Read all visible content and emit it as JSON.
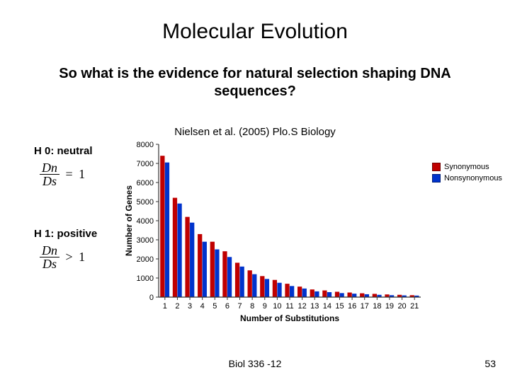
{
  "title": "Molecular Evolution",
  "subtitle": "So what is the evidence for natural selection shaping DNA sequences?",
  "citation": "Nielsen et al. (2005) Plo.S Biology",
  "hypotheses": {
    "h0_label": "H 0: neutral",
    "h1_label": "H 1: positive",
    "frac_num": "Dn",
    "frac_den": "Ds",
    "eq_rel": "=",
    "eq_val": "1",
    "gt_rel": ">",
    "gt_val": "1"
  },
  "footer": {
    "course": "Biol 336 -12",
    "page": "53"
  },
  "legend": {
    "items": [
      {
        "label": "Synonymous",
        "color": "#c00000"
      },
      {
        "label": "Nonsynonymous",
        "color": "#0033cc"
      }
    ]
  },
  "chart": {
    "type": "bar",
    "ylabel": "Number of Genes",
    "xlabel": "Number of Substitutions",
    "categories": [
      1,
      2,
      3,
      4,
      5,
      6,
      7,
      8,
      9,
      10,
      11,
      12,
      13,
      14,
      15,
      16,
      17,
      18,
      19,
      20,
      21
    ],
    "series": [
      {
        "name": "Synonymous",
        "color": "#c00000",
        "values": [
          7400,
          5200,
          4200,
          3300,
          2900,
          2400,
          1800,
          1400,
          1100,
          900,
          700,
          550,
          400,
          350,
          280,
          240,
          200,
          170,
          140,
          120,
          100
        ]
      },
      {
        "name": "Nonsynonymous",
        "color": "#0033cc",
        "values": [
          7050,
          4900,
          3900,
          2900,
          2500,
          2100,
          1600,
          1200,
          950,
          750,
          580,
          450,
          300,
          260,
          210,
          180,
          150,
          120,
          100,
          90,
          80
        ]
      }
    ],
    "ylim": [
      0,
      8000
    ],
    "yticks": [
      0,
      1000,
      2000,
      3000,
      4000,
      5000,
      6000,
      7000,
      8000
    ],
    "axis_color": "#333333",
    "tick_color": "#333333",
    "background_color": "#ffffff",
    "label_fontsize": 11,
    "axis_label_fontsize": 12,
    "bar_group_gap": 0.25,
    "font_family": "Arial"
  }
}
